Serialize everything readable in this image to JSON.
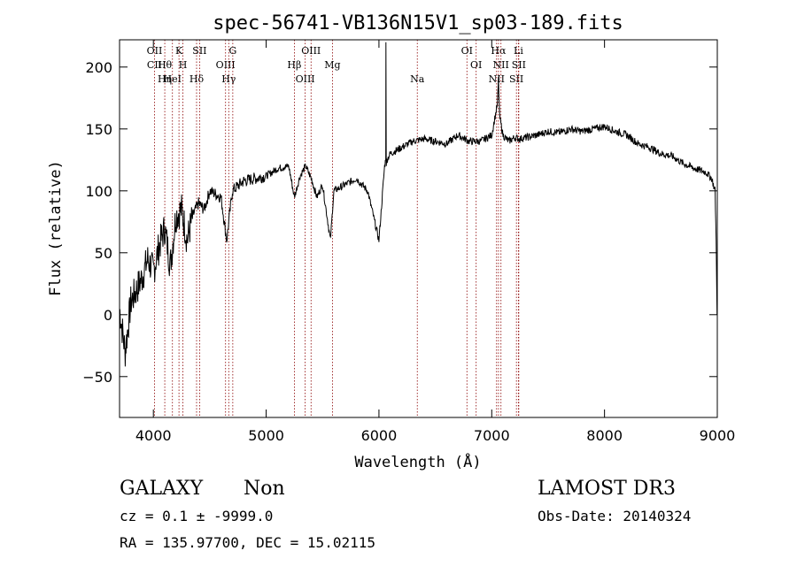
{
  "chart_data": {
    "type": "line",
    "title": "spec-56741-VB136N15V1_sp03-189.fits",
    "xlabel": "Wavelength (Å)",
    "ylabel": "Flux (relative)",
    "xlim": [
      3700,
      9000
    ],
    "ylim": [
      -83,
      222
    ],
    "xticks": [
      4000,
      5000,
      6000,
      7000,
      8000,
      9000
    ],
    "yticks": [
      -50,
      0,
      50,
      100,
      150,
      200
    ],
    "series": [
      {
        "x": [
          3700,
          3750,
          3800,
          3850,
          3900,
          3950,
          4000,
          4050,
          4100,
          4150,
          4200,
          4250,
          4300,
          4350,
          4400,
          4450,
          4500,
          4600,
          4650,
          4700,
          4800,
          4900,
          5000,
          5100,
          5200,
          5250,
          5300,
          5350,
          5400,
          5450,
          5500,
          5570,
          5600,
          5700,
          5800,
          5900,
          5950,
          6000,
          6050,
          6060,
          6062,
          6065,
          6070,
          6100,
          6200,
          6300,
          6400,
          6500,
          6600,
          6700,
          6800,
          6900,
          7000,
          7050,
          7060,
          7070,
          7100,
          7150,
          7200,
          7250,
          7300,
          7400,
          7500,
          7600,
          7700,
          7800,
          7900,
          8000,
          8100,
          8200,
          8300,
          8400,
          8500,
          8600,
          8700,
          8800,
          8900,
          8950,
          8980,
          8990,
          8998
        ],
        "y": [
          5,
          -30,
          10,
          20,
          30,
          45,
          35,
          55,
          70,
          40,
          80,
          85,
          60,
          80,
          90,
          85,
          100,
          95,
          60,
          100,
          108,
          110,
          112,
          118,
          120,
          95,
          112,
          120,
          110,
          95,
          105,
          60,
          100,
          105,
          110,
          100,
          80,
          60,
          120,
          125,
          220,
          120,
          125,
          130,
          135,
          140,
          142,
          140,
          138,
          145,
          140,
          140,
          145,
          170,
          190,
          160,
          145,
          140,
          143,
          142,
          143,
          145,
          148,
          147,
          150,
          148,
          150,
          152,
          148,
          145,
          138,
          135,
          130,
          128,
          122,
          118,
          115,
          110,
          100,
          60,
          0
        ]
      }
    ],
    "lines": [
      {
        "x": 4010,
        "labels": [
          "OII",
          "CII"
        ]
      },
      {
        "x": 4101,
        "labels": [
          "Hθ",
          "Hη"
        ]
      },
      {
        "x": 4169,
        "labels": [
          "HeI"
        ]
      },
      {
        "x": 4227,
        "labels": [
          "K"
        ]
      },
      {
        "x": 4262,
        "labels": [
          "H"
        ]
      },
      {
        "x": 4383,
        "labels": [
          "Hδ"
        ]
      },
      {
        "x": 4410,
        "labels": [
          "SII"
        ]
      },
      {
        "x": 4640,
        "labels": [
          "OIII"
        ]
      },
      {
        "x": 4668,
        "labels": [
          "Hγ"
        ]
      },
      {
        "x": 4704,
        "labels": [
          "G"
        ]
      },
      {
        "x": 5250,
        "labels": [
          "Hβ"
        ]
      },
      {
        "x": 5346,
        "labels": [
          "OIII"
        ]
      },
      {
        "x": 5398,
        "labels": [
          "OIII"
        ]
      },
      {
        "x": 5588,
        "labels": [
          "Mg"
        ]
      },
      {
        "x": 6340,
        "labels": [
          "Na"
        ]
      },
      {
        "x": 6780,
        "labels": [
          "OI"
        ]
      },
      {
        "x": 6862,
        "labels": [
          "OI"
        ]
      },
      {
        "x": 7043,
        "labels": [
          "NII"
        ]
      },
      {
        "x": 7060,
        "labels": [
          "Hα"
        ]
      },
      {
        "x": 7082,
        "labels": [
          "NII"
        ]
      },
      {
        "x": 7219,
        "labels": [
          "SII"
        ]
      },
      {
        "x": 7237,
        "labels": [
          "Li"
        ]
      },
      {
        "x": 7240,
        "labels": [
          "SII"
        ]
      }
    ],
    "line_color": "#8b0000",
    "grid": false
  },
  "footer": {
    "class_label": "GALAXY",
    "subclass_label": "Non",
    "survey": "LAMOST DR3",
    "cz_line": "cz = 0.1 ± -9999.0",
    "obs_date": "Obs-Date: 20140324",
    "coords": "RA = 135.97700, DEC =  15.02115"
  }
}
